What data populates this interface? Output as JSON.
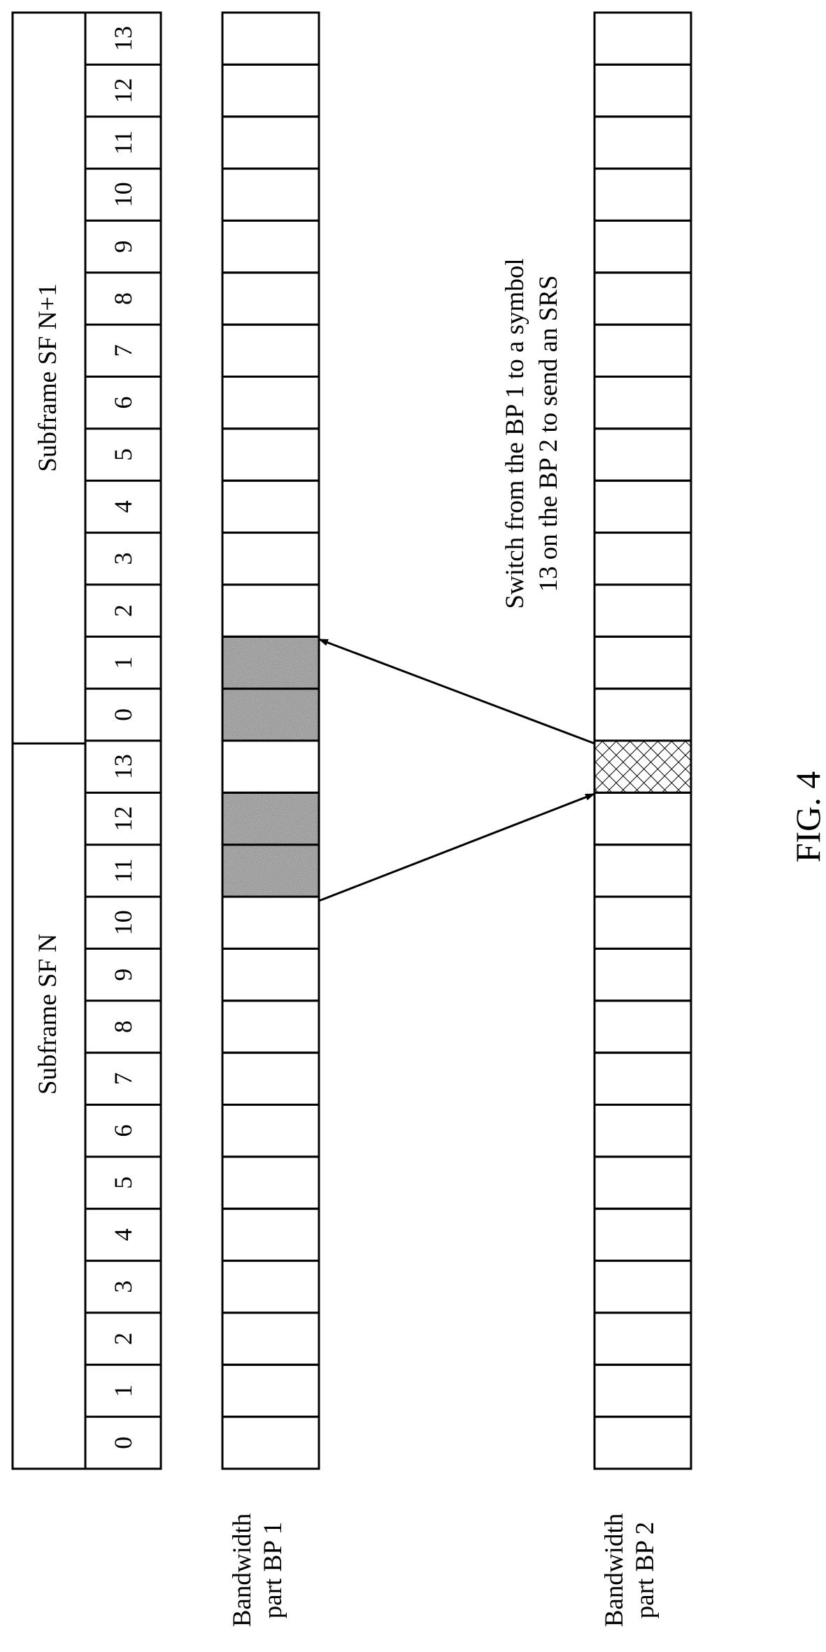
{
  "figure_label": "FIG. 4",
  "subframes": [
    {
      "label": "Subframe SF N"
    },
    {
      "label": "Subframe SF N+1"
    }
  ],
  "symbol_indices": [
    "0",
    "1",
    "2",
    "3",
    "4",
    "5",
    "6",
    "7",
    "8",
    "9",
    "10",
    "11",
    "12",
    "13"
  ],
  "bandwidth_parts": [
    {
      "label_line1": "Bandwidth",
      "label_line2": "part BP 1"
    },
    {
      "label_line1": "Bandwidth",
      "label_line2": "part BP 2"
    }
  ],
  "bp1_shaded_symbols": [
    {
      "subframe": 0,
      "symbol": 11
    },
    {
      "subframe": 0,
      "symbol": 12
    },
    {
      "subframe": 1,
      "symbol": 0
    },
    {
      "subframe": 1,
      "symbol": 1
    }
  ],
  "bp2_srs_symbol": {
    "subframe": 0,
    "symbol": 13
  },
  "annotation": {
    "line1": "Switch from the BP 1 to a symbol",
    "line2": "13 on the BP 2 to send an SRS"
  },
  "colors": {
    "shaded": "#c4c4c4",
    "hatch": "#000000",
    "line": "#000000"
  }
}
